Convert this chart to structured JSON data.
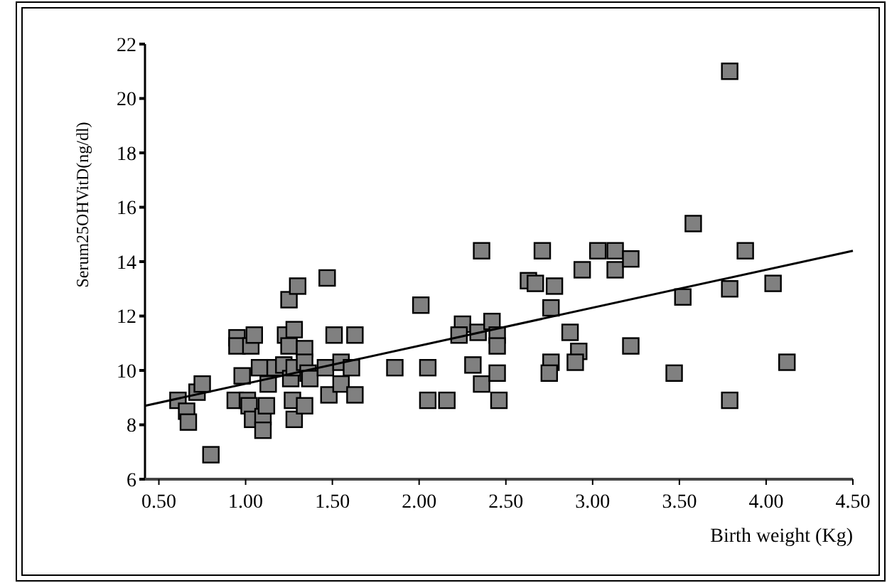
{
  "chart_data": {
    "type": "scatter",
    "xlabel": "Birth weight (Kg)",
    "ylabel": "Serum25OHVitD(ng/dl)",
    "xlim": [
      0.42,
      4.5
    ],
    "ylim": [
      6,
      22
    ],
    "xticks": [
      {
        "value": 0.5,
        "label": "0.50"
      },
      {
        "value": 1,
        "label": "1.00"
      },
      {
        "value": 1.5,
        "label": "1.50"
      },
      {
        "value": 2,
        "label": "2.00"
      },
      {
        "value": 2.5,
        "label": "2.50"
      },
      {
        "value": 3,
        "label": "3.00"
      },
      {
        "value": 3.5,
        "label": "3.50"
      },
      {
        "value": 4,
        "label": "4.00"
      },
      {
        "value": 4.5,
        "label": "4.50"
      }
    ],
    "yticks": [
      6,
      8,
      10,
      12,
      14,
      16,
      18,
      20,
      22
    ],
    "grid": false,
    "marker": "square",
    "series": [
      {
        "color": "#808080",
        "x": [
          0.61,
          0.66,
          0.67,
          0.72,
          0.75,
          0.8,
          0.94,
          0.95,
          0.95,
          0.98,
          1.01,
          1.02,
          1.03,
          1.05,
          1.04,
          1.08,
          1.1,
          1.12,
          1.13,
          1.1,
          1.17,
          1.23,
          1.25,
          1.3,
          1.25,
          1.28,
          1.22,
          1.26,
          1.28,
          1.27,
          1.28,
          1.34,
          1.34,
          1.34,
          1.36,
          1.37,
          1.47,
          1.48,
          1.46,
          1.51,
          1.55,
          1.55,
          1.61,
          1.63,
          1.63,
          1.86,
          2.05,
          2.01,
          2.05,
          2.16,
          2.36,
          2.31,
          2.36,
          2.25,
          2.23,
          2.34,
          2.42,
          2.45,
          2.45,
          2.45,
          2.46,
          2.63,
          2.67,
          2.71,
          2.78,
          2.76,
          2.87,
          2.92,
          2.9,
          2.76,
          2.75,
          2.94,
          3.03,
          3.13,
          3.13,
          3.22,
          3.22,
          3.79,
          3.58,
          3.88,
          3.52,
          3.79,
          4.04,
          3.47,
          4.12,
          3.79
        ],
        "values": [
          8.9,
          8.5,
          8.1,
          9.2,
          9.5,
          6.9,
          8.9,
          11.2,
          10.9,
          9.8,
          8.9,
          8.7,
          10.9,
          11.3,
          8.2,
          10.1,
          8.3,
          8.7,
          9.5,
          7.8,
          10.1,
          11.3,
          12.6,
          13.1,
          10.9,
          11.5,
          10.2,
          9.7,
          10.1,
          8.9,
          8.2,
          8.7,
          10.8,
          10.3,
          9.9,
          9.7,
          13.4,
          9.1,
          10.1,
          11.3,
          9.5,
          10.3,
          10.1,
          11.3,
          9.1,
          10.1,
          10.1,
          12.4,
          8.9,
          8.9,
          14.4,
          10.2,
          9.5,
          11.7,
          11.3,
          11.4,
          11.8,
          11.3,
          10.9,
          9.9,
          8.9,
          13.3,
          13.2,
          14.4,
          13.1,
          12.3,
          11.4,
          10.7,
          10.3,
          10.3,
          9.9,
          13.7,
          14.4,
          14.4,
          13.7,
          14.1,
          10.9,
          21,
          15.4,
          14.4,
          12.7,
          13,
          13.2,
          9.9,
          10.3,
          8.9
        ]
      },
      {
        "type": "line",
        "color": "#000000",
        "marker": "none",
        "x": [
          0.42,
          4.5
        ],
        "values": [
          8.7,
          14.4
        ]
      }
    ]
  }
}
